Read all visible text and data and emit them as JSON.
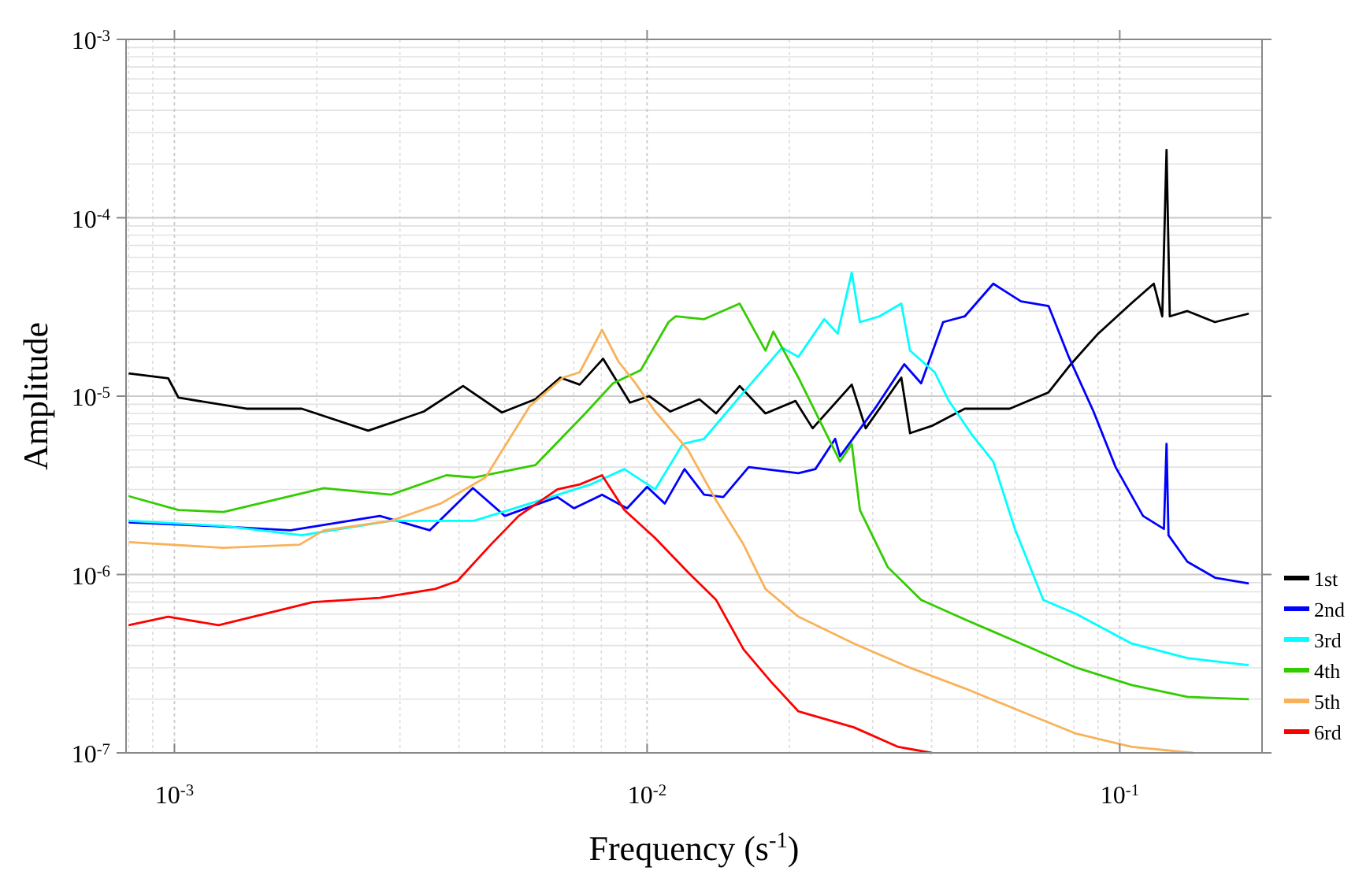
{
  "chart_data": {
    "type": "line",
    "xlabel": "Frequency (s$^{-1}$)",
    "ylabel": "Amplitude",
    "log": "xy",
    "grid": true,
    "legend": "bottom right",
    "line_style": "solid",
    "marker": "none",
    "xlim": [
      0.00079,
      0.2
    ],
    "ylim": [
      1e-07,
      0.001
    ],
    "xticks": [
      {
        "value": 0.001,
        "label": "10$^{-3}$"
      },
      {
        "value": 0.01,
        "label": "10$^{-2}$"
      },
      {
        "value": 0.1,
        "label": "10$^{-1}$"
      }
    ],
    "yticks": [
      {
        "value": 1e-07,
        "label": "10$^{-7}$"
      },
      {
        "value": 1e-06,
        "label": "10$^{-6}$"
      },
      {
        "value": 1e-05,
        "label": "10$^{-5}$"
      },
      {
        "value": 0.0001,
        "label": "10$^{-4}$"
      },
      {
        "value": 0.001,
        "label": "10$^{-3}$"
      }
    ],
    "series": [
      {
        "name": "1st",
        "color": "#000000",
        "x": [
          0.0008,
          0.00097,
          0.00102,
          0.00142,
          0.00186,
          0.00257,
          0.00337,
          0.00408,
          0.00493,
          0.0058,
          0.00655,
          0.0072,
          0.00807,
          0.0092,
          0.0101,
          0.0112,
          0.0129,
          0.014,
          0.0157,
          0.0178,
          0.0206,
          0.0224,
          0.0271,
          0.029,
          0.0345,
          0.036,
          0.04,
          0.047,
          0.0585,
          0.0707,
          0.0788,
          0.09,
          0.106,
          0.118,
          0.123,
          0.1256,
          0.1276,
          0.139,
          0.159,
          0.1875
        ],
        "values": [
          1.34e-05,
          1.26e-05,
          9.8e-06,
          8.5e-06,
          8.5e-06,
          6.4e-06,
          8.2e-06,
          1.14e-05,
          8.1e-06,
          9.6e-06,
          1.27e-05,
          1.16e-05,
          1.62e-05,
          9.2e-06,
          1e-05,
          8.2e-06,
          9.6e-06,
          8e-06,
          1.14e-05,
          8e-06,
          9.4e-06,
          6.6e-06,
          1.16e-05,
          6.6e-06,
          1.27e-05,
          6.2e-06,
          6.8e-06,
          8.5e-06,
          8.5e-06,
          1.05e-05,
          1.51e-05,
          2.24e-05,
          3.33e-05,
          4.27e-05,
          2.8e-05,
          0.00024,
          2.8e-05,
          3e-05,
          2.6e-05,
          2.9e-05
        ]
      },
      {
        "name": "2nd",
        "color": "#0000ff",
        "x": [
          0.0008,
          0.0012,
          0.00176,
          0.00272,
          0.00347,
          0.00428,
          0.005,
          0.00646,
          0.007,
          0.00803,
          0.00907,
          0.01,
          0.0109,
          0.012,
          0.0132,
          0.0145,
          0.0164,
          0.0209,
          0.0227,
          0.025,
          0.0256,
          0.0306,
          0.035,
          0.038,
          0.0423,
          0.047,
          0.054,
          0.0618,
          0.0707,
          0.078,
          0.088,
          0.098,
          0.112,
          0.124,
          0.1256,
          0.1268,
          0.139,
          0.159,
          0.1875
        ],
        "values": [
          1.96e-06,
          1.87e-06,
          1.77e-06,
          2.13e-06,
          1.77e-06,
          3.05e-06,
          2.13e-06,
          2.72e-06,
          2.35e-06,
          2.8e-06,
          2.35e-06,
          3.1e-06,
          2.5e-06,
          3.9e-06,
          2.8e-06,
          2.72e-06,
          4e-06,
          3.7e-06,
          3.9e-06,
          5.76e-06,
          4.6e-06,
          8.8e-06,
          1.51e-05,
          1.18e-05,
          2.6e-05,
          2.8e-05,
          4.27e-05,
          3.4e-05,
          3.2e-05,
          1.66e-05,
          8.2e-06,
          4e-06,
          2.13e-06,
          1.8e-06,
          5.4e-06,
          1.66e-06,
          1.18e-06,
          9.6e-07,
          8.9e-07
        ]
      },
      {
        "name": "3rd",
        "color": "#00ffff",
        "x": [
          0.0008,
          0.00127,
          0.00186,
          0.00287,
          0.0043,
          0.00565,
          0.0076,
          0.00895,
          0.0104,
          0.0119,
          0.0132,
          0.016,
          0.0193,
          0.0209,
          0.0237,
          0.0253,
          0.0271,
          0.0282,
          0.031,
          0.0345,
          0.036,
          0.0406,
          0.0435,
          0.0484,
          0.054,
          0.06,
          0.0689,
          0.081,
          0.106,
          0.139,
          0.1875
        ],
        "values": [
          2e-06,
          1.87e-06,
          1.66e-06,
          2e-06,
          2e-06,
          2.5e-06,
          3.2e-06,
          3.9e-06,
          3e-06,
          5.4e-06,
          5.76e-06,
          1.05e-05,
          1.87e-05,
          1.66e-05,
          2.7e-05,
          2.24e-05,
          4.93e-05,
          2.6e-05,
          2.8e-05,
          3.3e-05,
          1.8e-05,
          1.36e-05,
          9.4e-06,
          6.2e-06,
          4.3e-06,
          1.8e-06,
          7.2e-07,
          6e-07,
          4.1e-07,
          3.4e-07,
          3.1e-07
        ]
      },
      {
        "name": "4th",
        "color": "#33cc00",
        "x": [
          0.0008,
          0.00102,
          0.00127,
          0.00207,
          0.00287,
          0.00376,
          0.0043,
          0.0058,
          0.0074,
          0.00847,
          0.0097,
          0.0111,
          0.0115,
          0.0132,
          0.0157,
          0.0178,
          0.0185,
          0.0209,
          0.0233,
          0.0256,
          0.0271,
          0.0282,
          0.0323,
          0.038,
          0.047,
          0.0618,
          0.081,
          0.106,
          0.139,
          0.1875
        ],
        "values": [
          2.75e-06,
          2.3e-06,
          2.24e-06,
          3.05e-06,
          2.8e-06,
          3.6e-06,
          3.5e-06,
          4.1e-06,
          8e-06,
          1.18e-05,
          1.4e-05,
          2.6e-05,
          2.8e-05,
          2.7e-05,
          3.3e-05,
          1.8e-05,
          2.3e-05,
          1.27e-05,
          7.1e-06,
          4.3e-06,
          5.4e-06,
          2.3e-06,
          1.1e-06,
          7.2e-07,
          5.6e-07,
          4.1e-07,
          3e-07,
          2.4e-07,
          2.06e-07,
          2e-07
        ]
      },
      {
        "name": "5th",
        "color": "#f9b25a",
        "x": [
          0.0008,
          0.00127,
          0.00184,
          0.00207,
          0.00287,
          0.00366,
          0.00455,
          0.00565,
          0.00664,
          0.0072,
          0.00803,
          0.0087,
          0.00945,
          0.0104,
          0.0122,
          0.014,
          0.016,
          0.0178,
          0.0209,
          0.0274,
          0.036,
          0.047,
          0.0618,
          0.081,
          0.106,
          0.143
        ],
        "values": [
          1.52e-06,
          1.41e-06,
          1.47e-06,
          1.77e-06,
          2e-06,
          2.5e-06,
          3.5e-06,
          8.8e-06,
          1.27e-05,
          1.36e-05,
          2.35e-05,
          1.56e-05,
          1.18e-05,
          8.2e-06,
          5e-06,
          2.6e-06,
          1.47e-06,
          8.3e-07,
          5.8e-07,
          4.1e-07,
          3e-07,
          2.3e-07,
          1.71e-07,
          1.28e-07,
          1.08e-07,
          1e-07
        ]
      },
      {
        "name": "6rd",
        "color": "#ff0000",
        "x": [
          0.0008,
          0.00097,
          0.00124,
          0.00167,
          0.00196,
          0.00272,
          0.00356,
          0.00397,
          0.00467,
          0.00535,
          0.00646,
          0.0072,
          0.00803,
          0.00895,
          0.0104,
          0.0122,
          0.014,
          0.016,
          0.0183,
          0.0209,
          0.0274,
          0.034,
          0.04
        ],
        "values": [
          5.2e-07,
          5.8e-07,
          5.2e-07,
          6.3e-07,
          7e-07,
          7.4e-07,
          8.3e-07,
          9.2e-07,
          1.47e-06,
          2.13e-06,
          3e-06,
          3.2e-06,
          3.6e-06,
          2.3e-06,
          1.6e-06,
          1.03e-06,
          7.2e-07,
          3.8e-07,
          2.5e-07,
          1.71e-07,
          1.39e-07,
          1.08e-07,
          1e-07
        ]
      }
    ]
  }
}
